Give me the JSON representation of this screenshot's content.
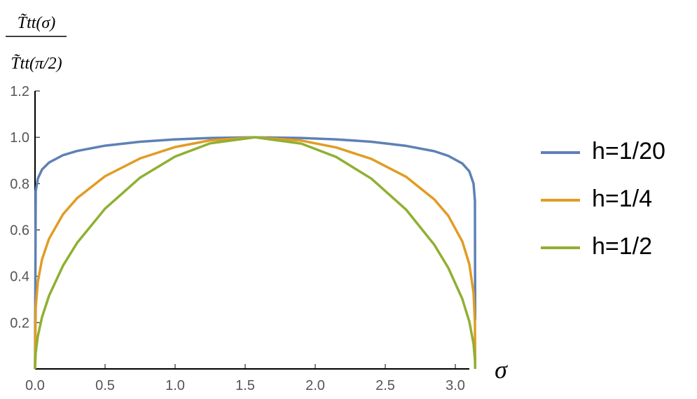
{
  "chart_data": {
    "type": "line",
    "y_label": {
      "numerator": "T̃tt(σ)",
      "denominator": "T̃tt(π/2)"
    },
    "x_label": "σ",
    "x": [
      0,
      0.005,
      0.02,
      0.05,
      0.1,
      0.2,
      0.3,
      0.5,
      0.75,
      1.0,
      1.25,
      1.5708,
      1.9,
      2.15,
      2.4,
      2.65,
      2.85,
      2.95,
      3.05,
      3.1,
      3.13,
      3.14,
      3.1416
    ],
    "series": [
      {
        "name": "h=1/20",
        "color": "#5e81b5",
        "values": [
          0,
          0.767,
          0.822,
          0.861,
          0.891,
          0.923,
          0.941,
          0.964,
          0.981,
          0.991,
          0.997,
          1,
          0.997,
          0.991,
          0.981,
          0.963,
          0.94,
          0.92,
          0.887,
          0.853,
          0.8,
          0.725,
          0.21
        ]
      },
      {
        "name": "h=1/4",
        "color": "#e19c24",
        "values": [
          0,
          0.266,
          0.376,
          0.473,
          0.562,
          0.668,
          0.737,
          0.832,
          0.909,
          0.958,
          0.987,
          1,
          0.986,
          0.956,
          0.907,
          0.829,
          0.732,
          0.661,
          0.55,
          0.452,
          0.328,
          0.2,
          0.02
        ]
      },
      {
        "name": "h=1/2",
        "color": "#8fb032",
        "values": [
          0,
          0.0707,
          0.1414,
          0.2236,
          0.316,
          0.446,
          0.544,
          0.692,
          0.826,
          0.917,
          0.974,
          1,
          0.973,
          0.915,
          0.822,
          0.687,
          0.536,
          0.436,
          0.302,
          0.204,
          0.108,
          0.04,
          0
        ]
      }
    ],
    "xlim": [
      0,
      3.15
    ],
    "ylim": [
      0,
      1.2
    ],
    "xticks": [
      {
        "value": 0,
        "label": "0.0"
      },
      0.5,
      {
        "value": 1,
        "label": "1.0"
      },
      1.5,
      {
        "value": 2,
        "label": "2.0"
      },
      2.5,
      {
        "value": 3,
        "label": "3.0"
      }
    ],
    "yticks": [
      0.2,
      0.4,
      0.6,
      0.8,
      {
        "value": 1,
        "label": "1.0"
      },
      1.2
    ],
    "grid": false,
    "legend": "right"
  }
}
